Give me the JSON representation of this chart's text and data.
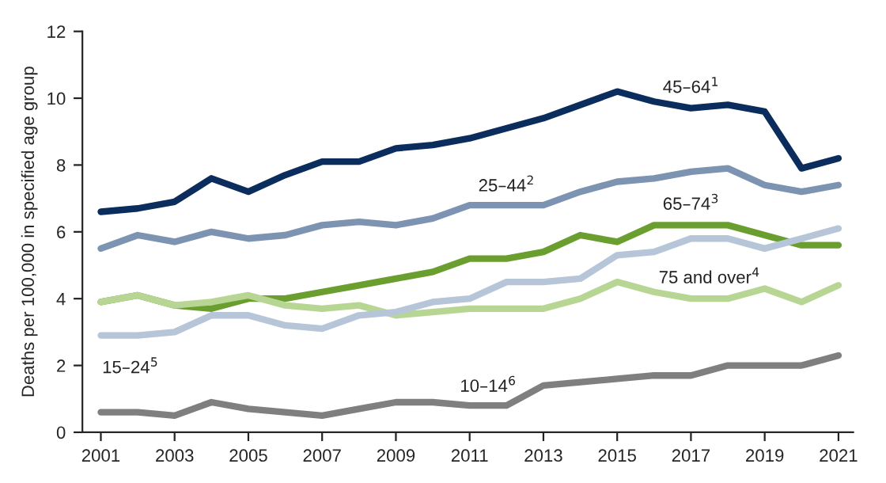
{
  "chart_data": {
    "type": "line",
    "ylabel": "Deaths per 100,000 in specified age group",
    "x": [
      2001,
      2002,
      2003,
      2004,
      2005,
      2006,
      2007,
      2008,
      2009,
      2010,
      2011,
      2012,
      2013,
      2014,
      2015,
      2016,
      2017,
      2018,
      2019,
      2020,
      2021
    ],
    "series": [
      {
        "name": "45–64$^{1}$",
        "color": "#0b2d5e",
        "values": [
          6.6,
          6.7,
          6.9,
          7.6,
          7.2,
          7.7,
          8.1,
          8.1,
          8.5,
          8.6,
          8.8,
          9.1,
          9.4,
          9.8,
          10.2,
          9.9,
          9.7,
          9.8,
          9.6,
          7.9,
          8.2
        ]
      },
      {
        "name": "25–44$^{2}$",
        "color": "#7d93b2",
        "values": [
          5.5,
          5.9,
          5.7,
          6.0,
          5.8,
          5.9,
          6.2,
          6.3,
          6.2,
          6.4,
          6.8,
          6.8,
          6.8,
          7.2,
          7.5,
          7.6,
          7.8,
          7.9,
          7.4,
          7.2,
          7.4
        ]
      },
      {
        "name": "65–74$^{3}$",
        "color": "#6a9e2f",
        "values": [
          3.9,
          4.1,
          3.8,
          3.7,
          4.0,
          4.0,
          4.2,
          4.4,
          4.6,
          4.8,
          5.2,
          5.2,
          5.4,
          5.9,
          5.7,
          6.2,
          6.2,
          6.2,
          5.9,
          5.6,
          5.6
        ]
      },
      {
        "name": "75 and over$^{4}$",
        "color": "#b7d593",
        "values": [
          3.9,
          4.1,
          3.8,
          3.9,
          4.1,
          3.8,
          3.7,
          3.8,
          3.5,
          3.6,
          3.7,
          3.7,
          3.7,
          4.0,
          4.5,
          4.2,
          4.0,
          4.0,
          4.3,
          3.9,
          4.4
        ]
      },
      {
        "name": "15–24$^{5}$",
        "color": "#b6c5d8",
        "values": [
          2.9,
          2.9,
          3.0,
          3.5,
          3.5,
          3.2,
          3.1,
          3.5,
          3.6,
          3.9,
          4.0,
          4.5,
          4.5,
          4.6,
          5.3,
          5.4,
          5.8,
          5.8,
          5.5,
          5.8,
          6.1
        ]
      },
      {
        "name": "10–14$^{6}$",
        "color": "#7f7f7f",
        "values": [
          0.6,
          0.6,
          0.5,
          0.9,
          0.7,
          0.6,
          0.5,
          0.7,
          0.9,
          0.9,
          0.8,
          0.8,
          1.4,
          1.5,
          1.6,
          1.7,
          1.7,
          2.0,
          2.0,
          2.0,
          2.3
        ]
      }
    ],
    "xlim": [
      2000.5,
      2021.4
    ],
    "ylim": [
      0,
      12
    ],
    "xticks": [
      2001,
      2003,
      2005,
      2007,
      2009,
      2011,
      2013,
      2015,
      2017,
      2019,
      2021
    ],
    "yticks": [
      0,
      2,
      4,
      6,
      8,
      10,
      12
    ],
    "grid": false,
    "legend": false
  }
}
